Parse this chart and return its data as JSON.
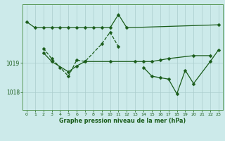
{
  "title": "Graphe pression niveau de la mer (hPa)",
  "bg_color": "#cceaea",
  "grid_color": "#aacccc",
  "line_color": "#1a5c1a",
  "xlim": [
    -0.5,
    23.5
  ],
  "ylim": [
    1017.4,
    1021.0
  ],
  "yticks": [
    1018,
    1019
  ],
  "ytick_labels": [
    "1018",
    "1019"
  ],
  "x_ticks": [
    0,
    1,
    2,
    3,
    4,
    5,
    6,
    7,
    8,
    9,
    10,
    11,
    12,
    13,
    14,
    15,
    16,
    17,
    18,
    19,
    20,
    21,
    22,
    23
  ],
  "series": [
    {
      "x": [
        0,
        1,
        2,
        3,
        4,
        5,
        6,
        7,
        8,
        9,
        10,
        11,
        12,
        23
      ],
      "y": [
        1020.4,
        1020.2,
        1020.2,
        1020.2,
        1020.2,
        1020.2,
        1020.2,
        1020.2,
        1020.2,
        1020.2,
        1020.2,
        1020.65,
        1020.2,
        1020.3
      ],
      "linestyle": "-",
      "marker": "D",
      "ms": 2.5
    },
    {
      "x": [
        2,
        3,
        4,
        5,
        6,
        7,
        9,
        10,
        11
      ],
      "y": [
        1019.5,
        1019.15,
        1018.85,
        1018.55,
        1019.1,
        1019.05,
        1019.65,
        1020.05,
        1019.55
      ],
      "linestyle": "--",
      "marker": "D",
      "ms": 2.5
    },
    {
      "x": [
        2,
        3,
        5,
        6,
        7,
        10,
        13,
        14,
        15,
        16,
        17,
        20,
        22
      ],
      "y": [
        1019.35,
        1019.05,
        1018.7,
        1018.9,
        1019.05,
        1019.05,
        1019.05,
        1019.05,
        1019.05,
        1019.1,
        1019.15,
        1019.25,
        1019.25
      ],
      "linestyle": "-",
      "marker": "D",
      "ms": 2.5
    },
    {
      "x": [
        14,
        15,
        16,
        17,
        18,
        19,
        20,
        22,
        23
      ],
      "y": [
        1018.85,
        1018.55,
        1018.5,
        1018.45,
        1017.95,
        1018.75,
        1018.3,
        1019.05,
        1019.45
      ],
      "linestyle": "-",
      "marker": "D",
      "ms": 2.5
    }
  ]
}
